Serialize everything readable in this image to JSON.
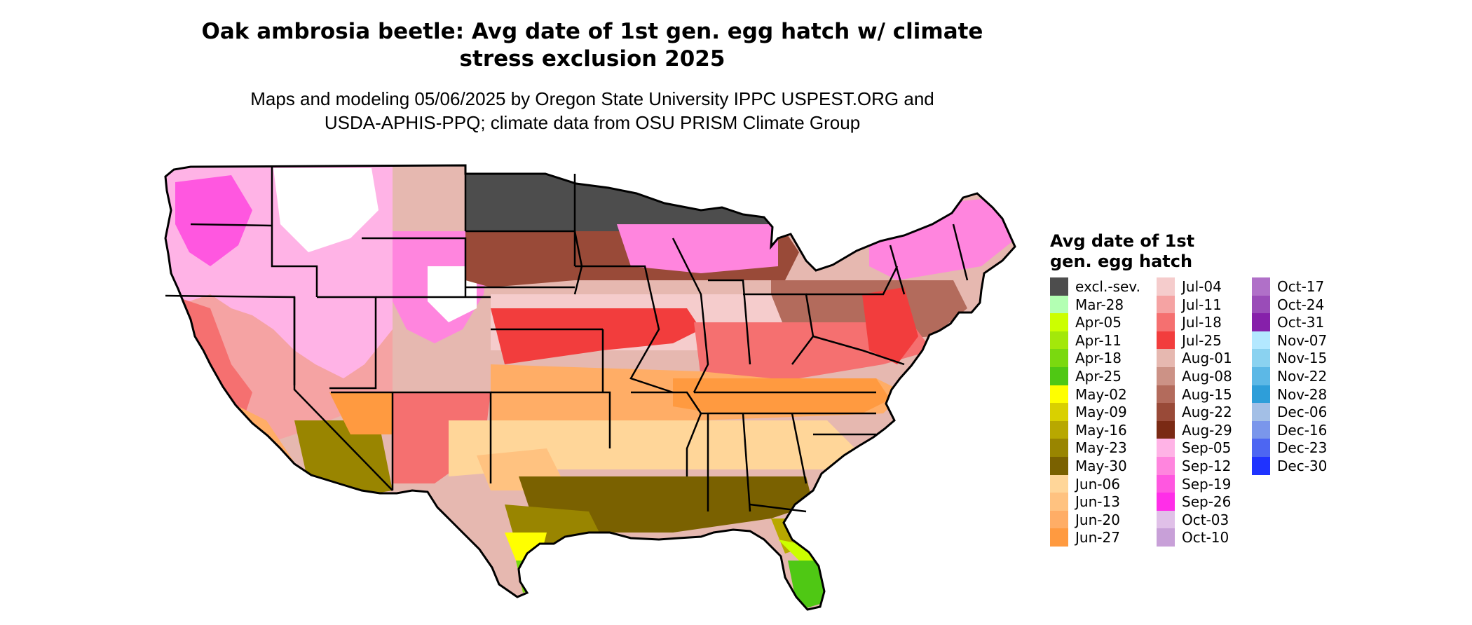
{
  "map": {
    "title_line1": "Oak ambrosia beetle: Avg date of 1st gen. egg hatch w/ climate",
    "title_line2": "stress exclusion 2025",
    "subtitle_line1": "Maps and modeling 05/06/2025 by Oregon State University IPPC USPEST.ORG and",
    "subtitle_line2": "USDA-APHIS-PPQ; climate data from OSU PRISM Climate Group",
    "region": "Contiguous United States",
    "boundaries": "state"
  },
  "legend": {
    "title_line1": "Avg date of 1st",
    "title_line2": "gen. egg hatch",
    "columns": [
      [
        {
          "label": "excl.-sev.",
          "color": "#4d4d4d"
        },
        {
          "label": "Mar-28",
          "color": "#b3ffb3"
        },
        {
          "label": "Apr-05",
          "color": "#ccff00"
        },
        {
          "label": "Apr-11",
          "color": "#a3e80a"
        },
        {
          "label": "Apr-18",
          "color": "#7ad90f"
        },
        {
          "label": "Apr-25",
          "color": "#4fc814"
        },
        {
          "label": "May-02",
          "color": "#ffff00"
        },
        {
          "label": "May-09",
          "color": "#d9d000"
        },
        {
          "label": "May-16",
          "color": "#b8a800"
        },
        {
          "label": "May-23",
          "color": "#998500"
        },
        {
          "label": "May-30",
          "color": "#7a6100"
        },
        {
          "label": "Jun-06",
          "color": "#ffd699"
        },
        {
          "label": "Jun-13",
          "color": "#ffc280"
        },
        {
          "label": "Jun-20",
          "color": "#ffad66"
        },
        {
          "label": "Jun-27",
          "color": "#ff9a40"
        }
      ],
      [
        {
          "label": "Jul-04",
          "color": "#f5cccc"
        },
        {
          "label": "Jul-11",
          "color": "#f5a3a3"
        },
        {
          "label": "Jul-18",
          "color": "#f57070"
        },
        {
          "label": "Jul-25",
          "color": "#f23d3d"
        },
        {
          "label": "Aug-01",
          "color": "#e6b8b0"
        },
        {
          "label": "Aug-08",
          "color": "#cc9286"
        },
        {
          "label": "Aug-15",
          "color": "#b36b5c"
        },
        {
          "label": "Aug-22",
          "color": "#994a38"
        },
        {
          "label": "Aug-29",
          "color": "#7a2a14"
        },
        {
          "label": "Sep-05",
          "color": "#ffb3e6"
        },
        {
          "label": "Sep-12",
          "color": "#ff85de"
        },
        {
          "label": "Sep-19",
          "color": "#ff57e0"
        },
        {
          "label": "Sep-26",
          "color": "#ff2ee8"
        },
        {
          "label": "Oct-03",
          "color": "#e0c0e8"
        },
        {
          "label": "Oct-10",
          "color": "#c8a0d8"
        }
      ],
      [
        {
          "label": "Oct-17",
          "color": "#b070c8"
        },
        {
          "label": "Oct-24",
          "color": "#9a4cb8"
        },
        {
          "label": "Oct-31",
          "color": "#8620aa"
        },
        {
          "label": "Nov-07",
          "color": "#b3e8ff"
        },
        {
          "label": "Nov-15",
          "color": "#8ad2f0"
        },
        {
          "label": "Nov-22",
          "color": "#5cb8e6"
        },
        {
          "label": "Nov-28",
          "color": "#2e9ed9"
        },
        {
          "label": "Dec-06",
          "color": "#a3bfe6"
        },
        {
          "label": "Dec-16",
          "color": "#7a96eb"
        },
        {
          "label": "Dec-23",
          "color": "#4d66f2"
        },
        {
          "label": "Dec-30",
          "color": "#1f33ff"
        }
      ]
    ]
  }
}
